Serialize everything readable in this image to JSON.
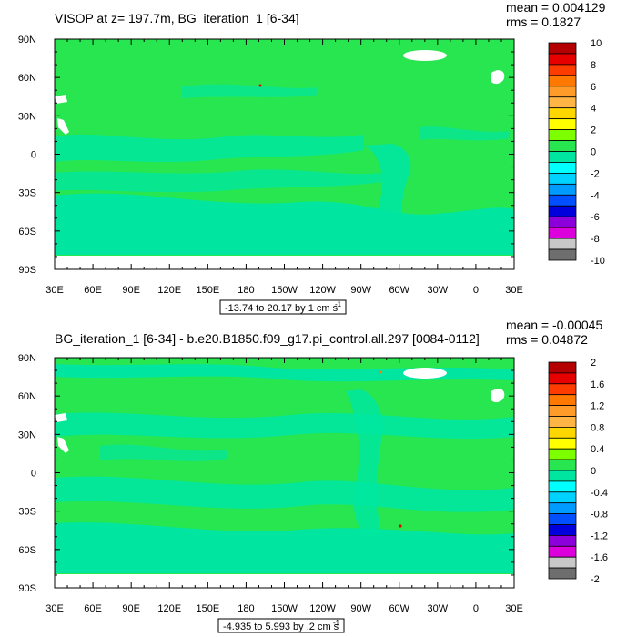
{
  "chart_data": [
    {
      "type": "heatmap",
      "title": "VISOP at z= 197.7m, BG_iteration_1 [6-34]",
      "stats": {
        "mean": "mean = 0.004129",
        "rms": "rms = 0.1827"
      },
      "range_text": "-13.74 to 20.17 by 1 cm s",
      "range_unit_exp": "-1",
      "x_ticks": [
        "30E",
        "60E",
        "90E",
        "120E",
        "150E",
        "180",
        "150W",
        "120W",
        "90W",
        "60W",
        "30W",
        "0",
        "30E"
      ],
      "y_ticks": [
        "90N",
        "60N",
        "30N",
        "0",
        "30S",
        "60S",
        "90S"
      ],
      "colorbar": {
        "labels": [
          "10",
          "8",
          "6",
          "4",
          "2",
          "0",
          "-2",
          "-4",
          "-6",
          "-8",
          "-10"
        ],
        "colors": [
          "#b40000",
          "#e60000",
          "#ff3c00",
          "#ff7800",
          "#ff9b28",
          "#ffb446",
          "#ffd700",
          "#ffff00",
          "#7dff00",
          "#28e650",
          "#00e6a0",
          "#00ffff",
          "#00d2ff",
          "#009bff",
          "#0050ff",
          "#0000dc",
          "#8c00dc",
          "#dc00dc",
          "#c8c8c8",
          "#6e6e6e"
        ]
      },
      "dominant_color": "#28e650",
      "secondary_color": "#00e6a0"
    },
    {
      "type": "heatmap",
      "title": "BG_iteration_1 [6-34] - b.e20.B1850.f09_g17.pi_control.all.297 [0084-0112]",
      "stats": {
        "mean": "mean = -0.00045",
        "rms": "rms = 0.04872"
      },
      "range_text": "-4.935 to 5.993 by .2 cm s",
      "range_unit_exp": "-1",
      "x_ticks": [
        "30E",
        "60E",
        "90E",
        "120E",
        "150E",
        "180",
        "150W",
        "120W",
        "90W",
        "60W",
        "30W",
        "0",
        "30E"
      ],
      "y_ticks": [
        "90N",
        "60N",
        "30N",
        "0",
        "30S",
        "60S",
        "90S"
      ],
      "colorbar": {
        "labels": [
          "2",
          "1.6",
          "1.2",
          "0.8",
          "0.4",
          "0",
          "-0.4",
          "-0.8",
          "-1.2",
          "-1.6",
          "-2"
        ],
        "colors": [
          "#b40000",
          "#e60000",
          "#ff3c00",
          "#ff7800",
          "#ff9b28",
          "#ffb446",
          "#ffd700",
          "#ffff00",
          "#7dff00",
          "#28e650",
          "#00e6a0",
          "#00ffff",
          "#00d2ff",
          "#009bff",
          "#0050ff",
          "#0000dc",
          "#8c00dc",
          "#dc00dc",
          "#c8c8c8",
          "#6e6e6e"
        ]
      },
      "dominant_color": "#28e650",
      "secondary_color": "#00e6a0"
    }
  ]
}
